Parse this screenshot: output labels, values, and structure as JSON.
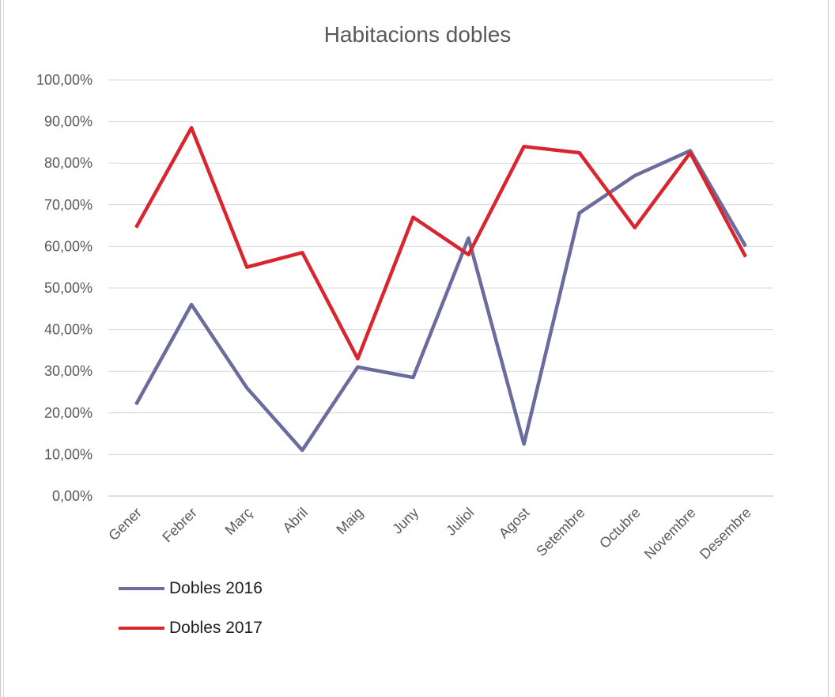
{
  "chart_data": {
    "type": "line",
    "title": "Habitacions dobles",
    "xlabel": "",
    "ylabel": "",
    "categories": [
      "Gener",
      "Febrer",
      "Març",
      "Abril",
      "Maig",
      "Juny",
      "Juliol",
      "Agost",
      "Setembre",
      "Octubre",
      "Novembre",
      "Desembre"
    ],
    "ylim": [
      0,
      100
    ],
    "yticks": [
      "0,00%",
      "10,00%",
      "20,00%",
      "30,00%",
      "40,00%",
      "50,00%",
      "60,00%",
      "70,00%",
      "80,00%",
      "90,00%",
      "100,00%"
    ],
    "grid": true,
    "legend_position": "bottom-left",
    "series": [
      {
        "name": "Dobles 2016",
        "color": "#6b6b9e",
        "values": [
          22,
          46,
          26,
          11,
          31,
          28.5,
          62,
          12.5,
          68,
          77,
          83,
          60
        ]
      },
      {
        "name": "Dobles 2017",
        "color": "#d9262e",
        "values": [
          64.5,
          88.5,
          55,
          58.5,
          33,
          67,
          58,
          84,
          82.5,
          64.5,
          82.5,
          57.5
        ]
      }
    ]
  }
}
